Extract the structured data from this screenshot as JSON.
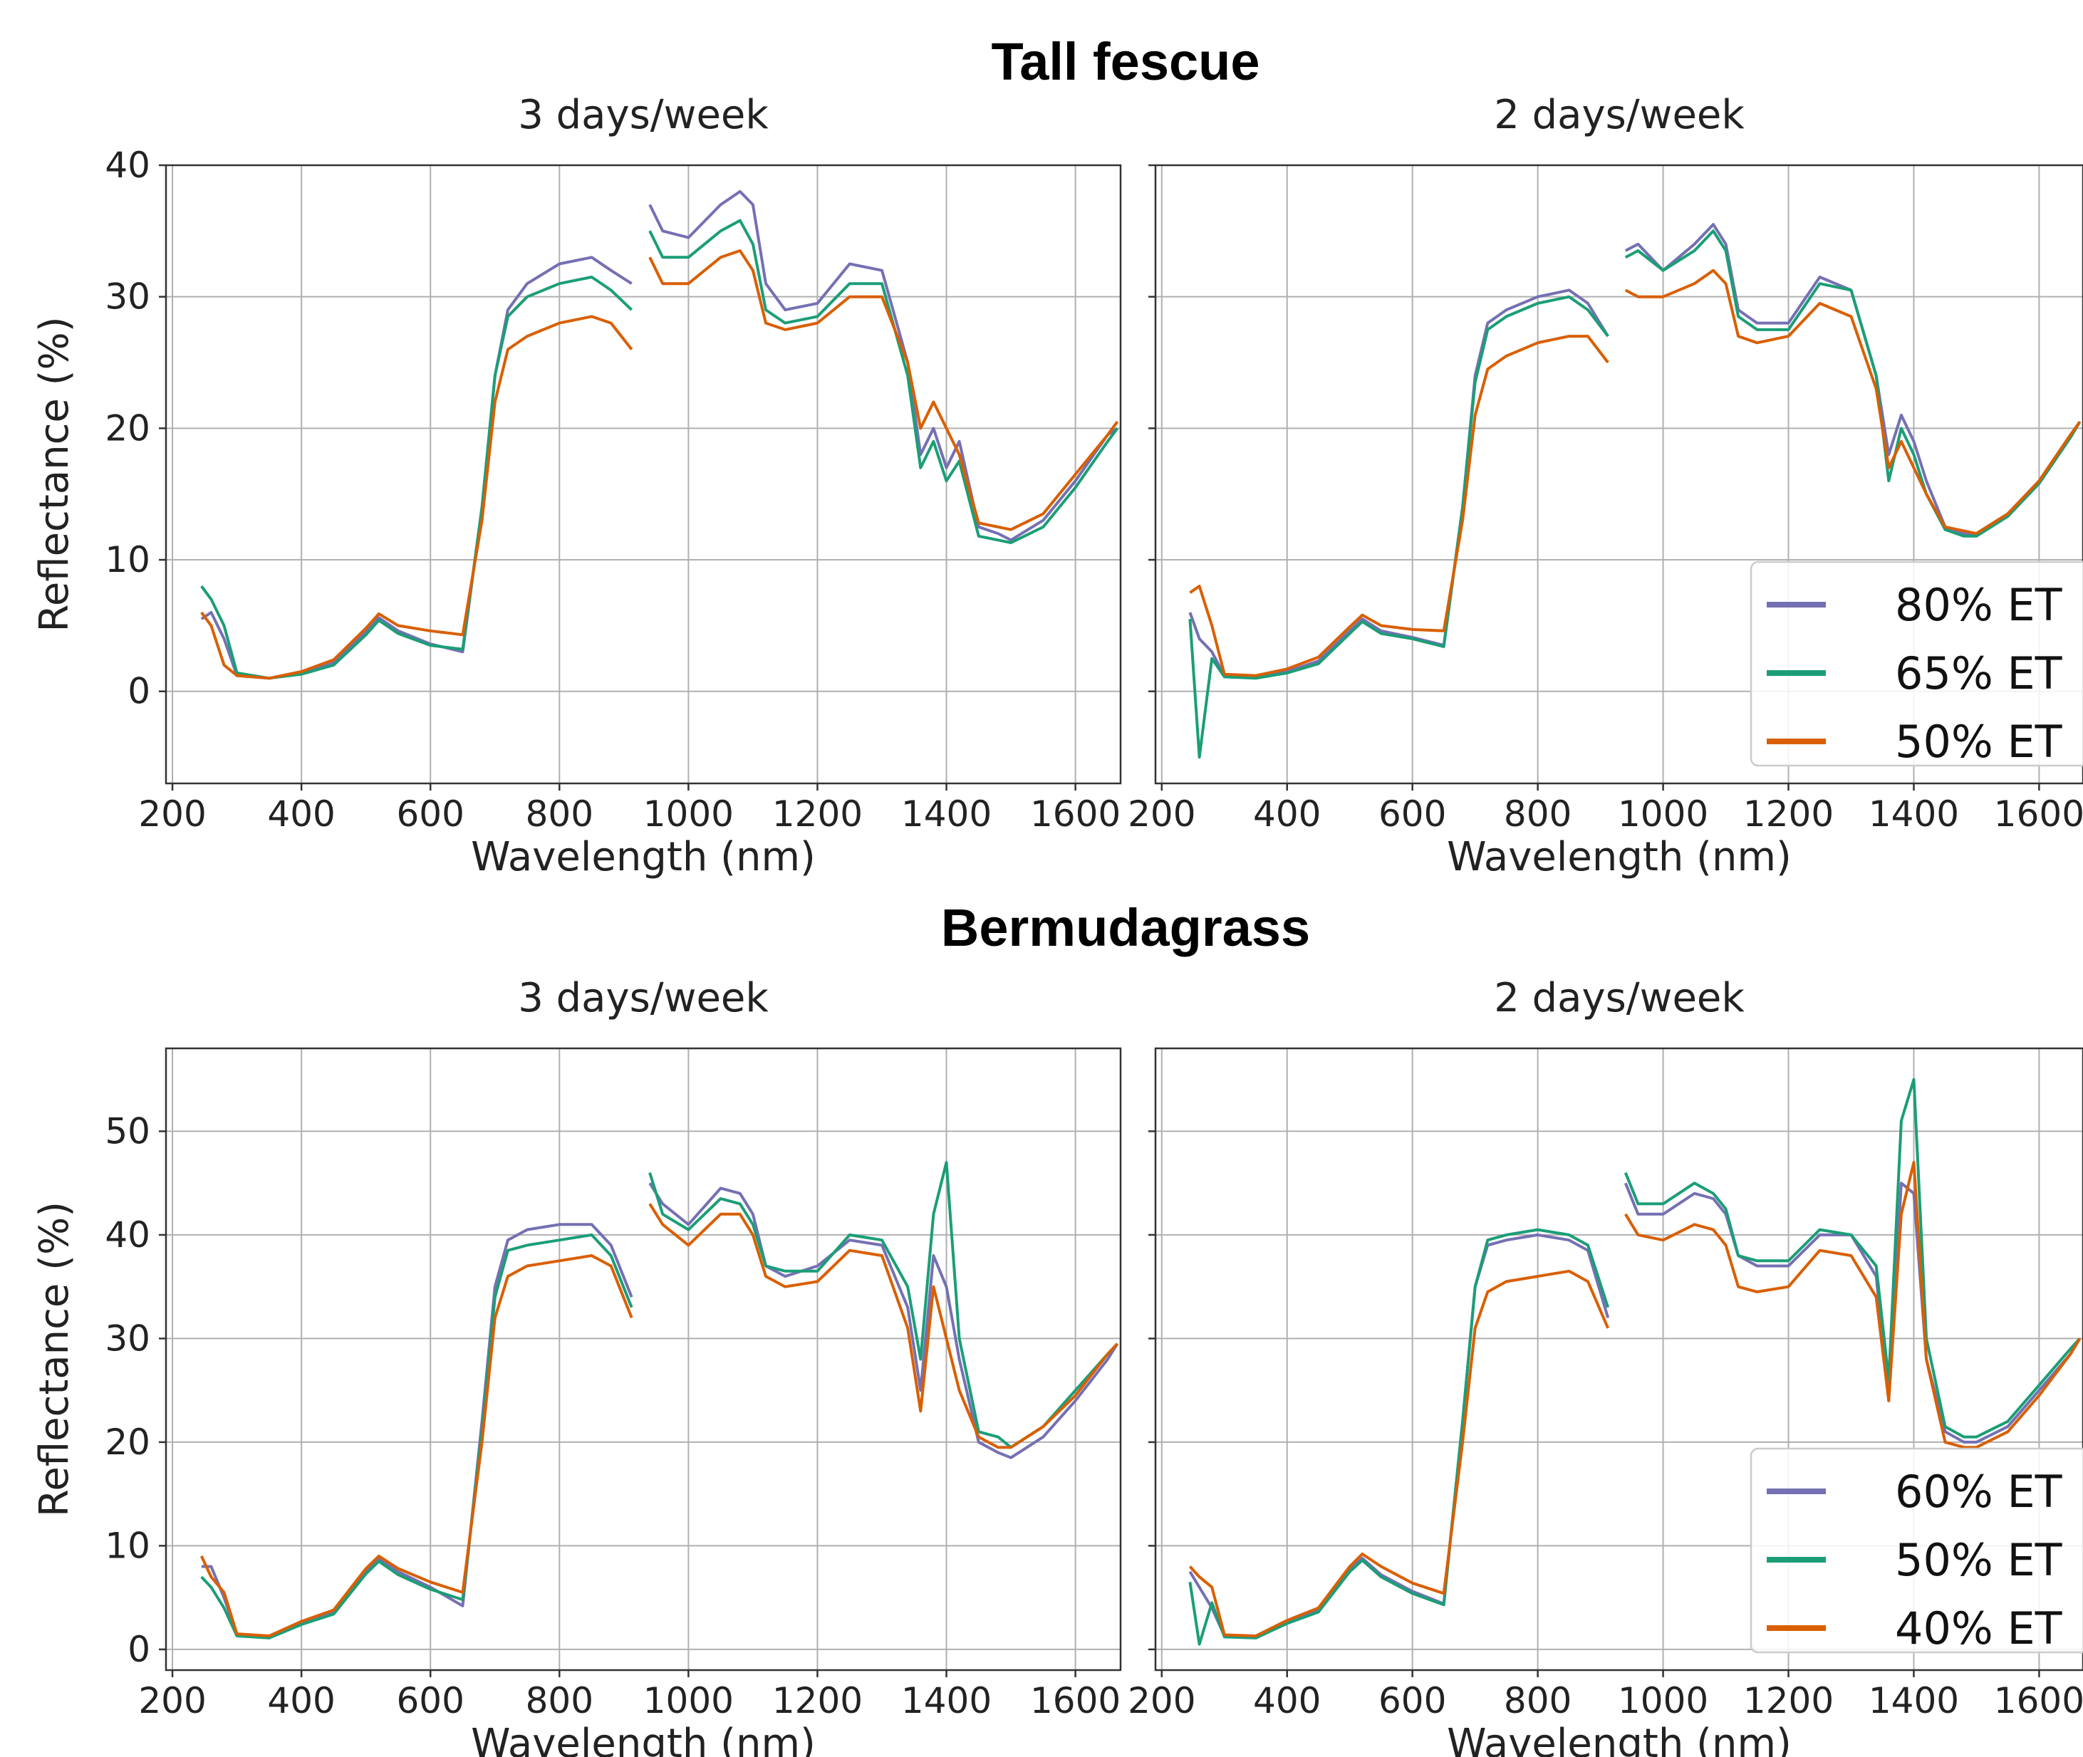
{
  "chart_data": [
    {
      "type": "line",
      "section": "Tall fescue",
      "title": "3 days/week",
      "xlabel": "Wavelength (nm)",
      "ylabel": "Reflectance (%)",
      "xlim": [
        190,
        1670
      ],
      "ylim": [
        -7,
        40
      ],
      "xticks": [
        200,
        400,
        600,
        800,
        1000,
        1200,
        1400,
        1600
      ],
      "yticks": [
        0,
        10,
        20,
        30,
        40
      ],
      "grid": true,
      "legend": false,
      "x": [
        245,
        260,
        280,
        300,
        350,
        400,
        450,
        500,
        520,
        550,
        600,
        650,
        680,
        700,
        720,
        750,
        800,
        850,
        880,
        912,
        940,
        960,
        1000,
        1050,
        1080,
        1100,
        1120,
        1150,
        1200,
        1250,
        1300,
        1340,
        1360,
        1380,
        1400,
        1420,
        1450,
        1480,
        1500,
        1550,
        1600,
        1650,
        1665
      ],
      "series": [
        {
          "name": "80% ET",
          "color": "#7570b3",
          "values": [
            5.5,
            6.0,
            4.0,
            1.2,
            1.0,
            1.4,
            2.2,
            4.5,
            5.6,
            4.6,
            3.6,
            3.0,
            14,
            24,
            29,
            31,
            32.5,
            33,
            32,
            31,
            37,
            35,
            34.5,
            37,
            38,
            37,
            31,
            29,
            29.5,
            32.5,
            32,
            25,
            18,
            20,
            17,
            19,
            12.5,
            12,
            11.5,
            13,
            16,
            19.5,
            20
          ]
        },
        {
          "name": "65% ET",
          "color": "#1b9e77",
          "values": [
            8.0,
            7.0,
            5.0,
            1.4,
            1.0,
            1.3,
            2.0,
            4.3,
            5.4,
            4.4,
            3.5,
            3.2,
            14,
            24,
            28.5,
            30,
            31,
            31.5,
            30.5,
            29,
            35,
            33,
            33,
            35,
            35.8,
            34,
            29,
            28,
            28.5,
            31,
            31,
            24,
            17,
            19,
            16,
            17.5,
            11.8,
            11.5,
            11.3,
            12.5,
            15.5,
            19,
            20
          ]
        },
        {
          "name": "50% ET",
          "color": "#d95f02",
          "values": [
            6.0,
            5.0,
            2.0,
            1.2,
            1.0,
            1.5,
            2.4,
            4.8,
            5.9,
            5.0,
            4.6,
            4.3,
            13,
            22,
            26,
            27,
            28,
            28.5,
            28,
            26,
            33,
            31,
            31,
            33,
            33.5,
            32,
            28,
            27.5,
            28,
            30,
            30,
            25,
            20,
            22,
            20,
            18,
            12.8,
            12.5,
            12.3,
            13.5,
            16.5,
            19.5,
            20.5
          ]
        }
      ]
    },
    {
      "type": "line",
      "section": "Tall fescue",
      "title": "2 days/week",
      "xlabel": "Wavelength (nm)",
      "ylabel": "",
      "xlim": [
        190,
        1670
      ],
      "ylim": [
        -7,
        40
      ],
      "xticks": [
        200,
        400,
        600,
        800,
        1000,
        1200,
        1400,
        1600
      ],
      "yticks": [
        0,
        10,
        20,
        30,
        40
      ],
      "grid": true,
      "legend": true,
      "legend_position": "lower-right",
      "x": [
        245,
        260,
        280,
        300,
        350,
        400,
        450,
        500,
        520,
        550,
        600,
        650,
        680,
        700,
        720,
        750,
        800,
        850,
        880,
        912,
        940,
        960,
        1000,
        1050,
        1080,
        1100,
        1120,
        1150,
        1200,
        1250,
        1300,
        1340,
        1360,
        1380,
        1400,
        1420,
        1450,
        1480,
        1500,
        1550,
        1600,
        1650,
        1665
      ],
      "series": [
        {
          "name": "80% ET",
          "color": "#7570b3",
          "values": [
            6.0,
            4.0,
            3.0,
            1.2,
            1.1,
            1.5,
            2.3,
            4.6,
            5.5,
            4.6,
            4.1,
            3.5,
            14,
            24,
            28,
            29,
            30,
            30.5,
            29.5,
            27,
            33.5,
            34,
            32,
            34,
            35.5,
            34,
            29,
            28,
            28,
            31.5,
            30.5,
            24,
            18,
            21,
            19,
            16,
            12.5,
            12,
            12,
            13.5,
            16,
            19.5,
            20.5
          ]
        },
        {
          "name": "65% ET",
          "color": "#1b9e77",
          "values": [
            5.5,
            -5.0,
            2.5,
            1.1,
            1.0,
            1.4,
            2.1,
            4.4,
            5.3,
            4.4,
            4.0,
            3.4,
            14,
            23.5,
            27.5,
            28.5,
            29.5,
            30,
            29,
            27,
            33,
            33.5,
            32,
            33.5,
            35,
            33.5,
            28.5,
            27.5,
            27.5,
            31,
            30.5,
            24,
            16,
            20,
            18,
            15,
            12.3,
            11.8,
            11.8,
            13.3,
            15.8,
            19.3,
            20.5
          ]
        },
        {
          "name": "50% ET",
          "color": "#d95f02",
          "values": [
            7.5,
            8.0,
            5.0,
            1.3,
            1.2,
            1.7,
            2.6,
            4.9,
            5.8,
            5.0,
            4.7,
            4.6,
            13,
            21,
            24.5,
            25.5,
            26.5,
            27,
            27,
            25,
            30.5,
            30,
            30,
            31,
            32,
            31,
            27,
            26.5,
            27,
            29.5,
            28.5,
            23,
            17,
            19,
            17,
            15,
            12.5,
            12.2,
            12,
            13.5,
            16,
            19.5,
            20.5
          ]
        }
      ]
    },
    {
      "type": "line",
      "section": "Bermudagrass",
      "title": "3 days/week",
      "xlabel": "Wavelength (nm)",
      "ylabel": "Reflectance (%)",
      "xlim": [
        190,
        1670
      ],
      "ylim": [
        -2,
        58
      ],
      "xticks": [
        200,
        400,
        600,
        800,
        1000,
        1200,
        1400,
        1600
      ],
      "yticks": [
        0,
        10,
        20,
        30,
        40,
        50
      ],
      "grid": true,
      "legend": false,
      "x": [
        245,
        260,
        280,
        300,
        350,
        400,
        450,
        500,
        520,
        550,
        600,
        650,
        680,
        700,
        720,
        750,
        800,
        850,
        880,
        912,
        940,
        960,
        1000,
        1050,
        1080,
        1100,
        1120,
        1150,
        1200,
        1250,
        1300,
        1340,
        1360,
        1380,
        1400,
        1420,
        1450,
        1480,
        1500,
        1550,
        1600,
        1650,
        1665
      ],
      "series": [
        {
          "name": "60% ET",
          "color": "#7570b3",
          "values": [
            8.0,
            8.0,
            5.0,
            1.4,
            1.2,
            2.5,
            3.6,
            7.5,
            8.7,
            7.5,
            6.0,
            4.2,
            22,
            35,
            39.5,
            40.5,
            41,
            41,
            39,
            34,
            45,
            43,
            41,
            44.5,
            44,
            42,
            37,
            36,
            37,
            39.5,
            39,
            33,
            25,
            38,
            35,
            28,
            20,
            19,
            18.5,
            20.5,
            24,
            28,
            29.5
          ]
        },
        {
          "name": "50% ET",
          "color": "#1b9e77",
          "values": [
            7.0,
            6.0,
            4.0,
            1.3,
            1.1,
            2.4,
            3.4,
            7.3,
            8.5,
            7.2,
            5.8,
            4.8,
            21,
            34,
            38.5,
            39,
            39.5,
            40,
            38,
            33,
            46,
            42,
            40.5,
            43.5,
            43,
            41,
            37,
            36.5,
            36.5,
            40,
            39.5,
            35,
            28,
            42,
            47,
            30,
            21,
            20.5,
            19.5,
            21.5,
            25,
            28.5,
            29.5
          ]
        },
        {
          "name": "40% ET",
          "color": "#d95f02",
          "values": [
            9.0,
            7.0,
            5.5,
            1.5,
            1.3,
            2.7,
            3.8,
            7.8,
            9.0,
            7.8,
            6.5,
            5.5,
            20,
            32,
            36,
            37,
            37.5,
            38,
            37,
            32,
            43,
            41,
            39,
            42,
            42,
            40,
            36,
            35,
            35.5,
            38.5,
            38,
            31,
            23,
            35,
            30,
            25,
            20.5,
            19.5,
            19.5,
            21.5,
            24.5,
            28.5,
            29.5
          ]
        }
      ]
    },
    {
      "type": "line",
      "section": "Bermudagrass",
      "title": "2 days/week",
      "xlabel": "Wavelength (nm)",
      "ylabel": "",
      "xlim": [
        190,
        1670
      ],
      "ylim": [
        -2,
        58
      ],
      "xticks": [
        200,
        400,
        600,
        800,
        1000,
        1200,
        1400,
        1600
      ],
      "yticks": [
        0,
        10,
        20,
        30,
        40,
        50
      ],
      "grid": true,
      "legend": true,
      "legend_position": "lower-right",
      "x": [
        245,
        260,
        280,
        300,
        350,
        400,
        450,
        500,
        520,
        550,
        600,
        650,
        680,
        700,
        720,
        750,
        800,
        850,
        880,
        912,
        940,
        960,
        1000,
        1050,
        1080,
        1100,
        1120,
        1150,
        1200,
        1250,
        1300,
        1340,
        1360,
        1380,
        1400,
        1420,
        1450,
        1480,
        1500,
        1550,
        1600,
        1650,
        1665
      ],
      "series": [
        {
          "name": "60% ET",
          "color": "#7570b3",
          "values": [
            7.5,
            6.0,
            4.0,
            1.3,
            1.2,
            2.6,
            3.8,
            7.7,
            8.8,
            7.2,
            5.6,
            4.4,
            22,
            35,
            39,
            39.5,
            40,
            39.5,
            38.5,
            32,
            45,
            42,
            42,
            44,
            43.5,
            42,
            38,
            37,
            37,
            40,
            40,
            36,
            24,
            45,
            44,
            28,
            21,
            20,
            20,
            21.5,
            25,
            28.5,
            30
          ]
        },
        {
          "name": "50% ET",
          "color": "#1b9e77",
          "values": [
            6.5,
            0.5,
            4.5,
            1.2,
            1.1,
            2.5,
            3.6,
            7.5,
            8.6,
            7.0,
            5.4,
            4.3,
            22,
            35,
            39.5,
            40,
            40.5,
            40,
            39,
            33,
            46,
            43,
            43,
            45,
            44,
            42.5,
            38,
            37.5,
            37.5,
            40.5,
            40,
            37,
            26,
            51,
            55,
            30,
            21.5,
            20.5,
            20.5,
            22,
            25.5,
            29,
            30
          ]
        },
        {
          "name": "40% ET",
          "color": "#d95f02",
          "values": [
            8.0,
            7.0,
            6.0,
            1.4,
            1.3,
            2.8,
            4.0,
            8.0,
            9.2,
            8.0,
            6.4,
            5.4,
            20,
            31,
            34.5,
            35.5,
            36,
            36.5,
            35.5,
            31,
            42,
            40,
            39.5,
            41,
            40.5,
            39,
            35,
            34.5,
            35,
            38.5,
            38,
            34,
            24,
            42,
            47,
            28,
            20,
            19.5,
            19.5,
            21,
            24.5,
            28.5,
            30
          ]
        }
      ]
    }
  ],
  "section_titles": {
    "top": "Tall fescue",
    "bottom": "Bermudagrass"
  }
}
